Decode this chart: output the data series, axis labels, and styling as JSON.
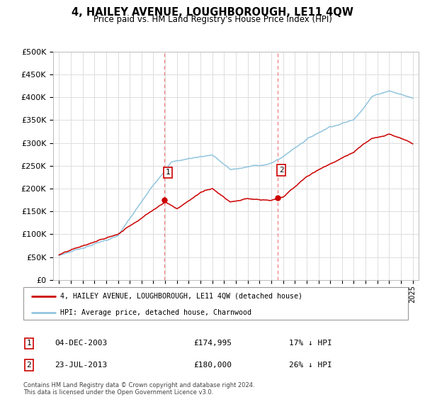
{
  "title": "4, HAILEY AVENUE, LOUGHBOROUGH, LE11 4QW",
  "subtitle": "Price paid vs. HM Land Registry's House Price Index (HPI)",
  "ylabel_ticks": [
    "£0",
    "£50K",
    "£100K",
    "£150K",
    "£200K",
    "£250K",
    "£300K",
    "£350K",
    "£400K",
    "£450K",
    "£500K"
  ],
  "ytick_values": [
    0,
    50000,
    100000,
    150000,
    200000,
    250000,
    300000,
    350000,
    400000,
    450000,
    500000
  ],
  "ylim": [
    0,
    500000
  ],
  "xlim_start": 1994.5,
  "xlim_end": 2025.5,
  "hpi_color": "#92c5de",
  "price_color": "#cc0000",
  "dashed_line_color": "#f08080",
  "sale1_x": 2003.92,
  "sale1_y": 174995,
  "sale1_label": "1",
  "sale2_x": 2013.55,
  "sale2_y": 180000,
  "sale2_label": "2",
  "legend_label_price": "4, HAILEY AVENUE, LOUGHBOROUGH, LE11 4QW (detached house)",
  "legend_label_hpi": "HPI: Average price, detached house, Charnwood",
  "note1_label": "1",
  "note1_date": "04-DEC-2003",
  "note1_price": "£174,995",
  "note1_hpi": "17% ↓ HPI",
  "note2_label": "2",
  "note2_date": "23-JUL-2013",
  "note2_price": "£180,000",
  "note2_hpi": "26% ↓ HPI",
  "footer": "Contains HM Land Registry data © Crown copyright and database right 2024.\nThis data is licensed under the Open Government Licence v3.0.",
  "background_color": "#ffffff",
  "grid_color": "#dddddd",
  "xtick_years": [
    1995,
    1996,
    1997,
    1998,
    1999,
    2000,
    2001,
    2002,
    2003,
    2004,
    2005,
    2006,
    2007,
    2008,
    2009,
    2010,
    2011,
    2012,
    2013,
    2014,
    2015,
    2016,
    2017,
    2018,
    2019,
    2020,
    2021,
    2022,
    2023,
    2024,
    2025
  ]
}
